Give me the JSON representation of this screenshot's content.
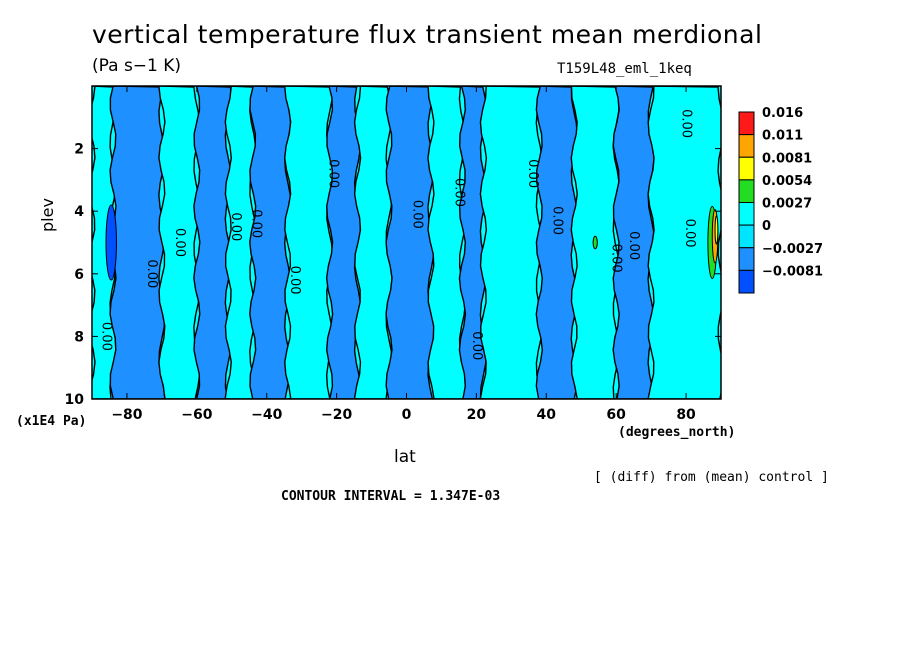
{
  "title": "vertical temperature flux transient mean merdional",
  "units": "(Pa s−1 K)",
  "experiment": "T159L48_eml_1keq",
  "y_axis_label": "plev",
  "y_axis_unit": "(x1E4 Pa)",
  "x_axis_unit": "(degrees_north)",
  "x_axis_label": "lat",
  "comparison_note": "[ (diff) from (mean) control ]",
  "contour_interval": "CONTOUR INTERVAL = 1.347E-03",
  "chart_data": {
    "type": "heatmap",
    "title": "vertical temperature flux transient mean merdional",
    "xlabel": "lat",
    "ylabel": "plev",
    "xlim": [
      -90,
      90
    ],
    "ylim": [
      10,
      0
    ],
    "x_ticks": [
      -80,
      -60,
      -40,
      -20,
      0,
      20,
      40,
      60,
      80
    ],
    "x_tick_labels": [
      "−80",
      "−60",
      "−40",
      "−20",
      "0",
      "20",
      "40",
      "60",
      "80"
    ],
    "y_ticks": [
      2,
      4,
      6,
      8,
      10
    ],
    "y_tick_labels": [
      "2",
      "4",
      "6",
      "8",
      "10"
    ],
    "legend_placement": "right",
    "colorbar": {
      "labels": [
        "0.016",
        "0.011",
        "0.0081",
        "0.0054",
        "0.0027",
        "0",
        "−0.0027",
        "−0.0081"
      ],
      "colors": [
        "#ff1a1a",
        "#ffa500",
        "#ffff00",
        "#22dd22",
        "#00ffff",
        "#00e5ff",
        "#1e90ff",
        "#0050ff"
      ]
    },
    "band_colors": {
      "negative": "#1e90ff",
      "zero": "#00ffff",
      "positive": "#22dd22",
      "strong_positive": "#ffa500",
      "very_strong_positive": "#ffff00",
      "strong_negative": "#0050ff"
    },
    "bands": [
      {
        "lat": [
          -90,
          -84
        ],
        "level": "zero"
      },
      {
        "lat": [
          -84,
          -70
        ],
        "level": "negative"
      },
      {
        "lat": [
          -70,
          -60
        ],
        "level": "zero"
      },
      {
        "lat": [
          -60,
          -51
        ],
        "level": "negative"
      },
      {
        "lat": [
          -51,
          -44
        ],
        "level": "zero"
      },
      {
        "lat": [
          -44,
          -34
        ],
        "level": "negative"
      },
      {
        "lat": [
          -34,
          -22
        ],
        "level": "zero"
      },
      {
        "lat": [
          -22,
          -14
        ],
        "level": "negative"
      },
      {
        "lat": [
          -14,
          -5
        ],
        "level": "zero"
      },
      {
        "lat": [
          -5,
          7
        ],
        "level": "negative"
      },
      {
        "lat": [
          7,
          16
        ],
        "level": "zero"
      },
      {
        "lat": [
          16,
          22
        ],
        "level": "negative"
      },
      {
        "lat": [
          22,
          38
        ],
        "level": "zero"
      },
      {
        "lat": [
          38,
          48
        ],
        "level": "negative"
      },
      {
        "lat": [
          48,
          60
        ],
        "level": "zero"
      },
      {
        "lat": [
          60,
          70
        ],
        "level": "negative"
      },
      {
        "lat": [
          70,
          90
        ],
        "level": "zero"
      }
    ],
    "features": [
      {
        "lat": -84.5,
        "plev": 5.0,
        "dlat": 3,
        "dplev": 2.4,
        "level": "strong_negative"
      },
      {
        "lat": 54,
        "plev": 5.0,
        "dlat": 1.2,
        "dplev": 0.4,
        "level": "positive"
      },
      {
        "lat": 87.5,
        "plev": 5.0,
        "dlat": 2.5,
        "dplev": 2.3,
        "level": "positive"
      },
      {
        "lat": 88.3,
        "plev": 4.8,
        "dlat": 1.6,
        "dplev": 1.7,
        "level": "strong_positive"
      },
      {
        "lat": 88.7,
        "plev": 4.6,
        "dlat": 0.8,
        "dplev": 0.9,
        "level": "very_strong_positive"
      }
    ],
    "contour_labels": [
      {
        "lat": -86,
        "plev": 8.0,
        "text": "0.00"
      },
      {
        "lat": -73,
        "plev": 6.0,
        "text": "0.00"
      },
      {
        "lat": -65,
        "plev": 5.0,
        "text": "0.00"
      },
      {
        "lat": -49,
        "plev": 4.5,
        "text": "0.00"
      },
      {
        "lat": -43,
        "plev": 4.4,
        "text": "0.00"
      },
      {
        "lat": -32,
        "plev": 6.2,
        "text": "0.00"
      },
      {
        "lat": -21,
        "plev": 2.8,
        "text": "0.00"
      },
      {
        "lat": 3,
        "plev": 4.1,
        "text": "0.00"
      },
      {
        "lat": 15,
        "plev": 3.4,
        "text": "0.00"
      },
      {
        "lat": 20,
        "plev": 8.3,
        "text": "0.00"
      },
      {
        "lat": 36,
        "plev": 2.8,
        "text": "0.00"
      },
      {
        "lat": 43,
        "plev": 4.3,
        "text": "0.00"
      },
      {
        "lat": 60,
        "plev": 5.5,
        "text": "0.00"
      },
      {
        "lat": 65,
        "plev": 5.1,
        "text": "0.00"
      },
      {
        "lat": 80,
        "plev": 1.2,
        "text": "0.00"
      },
      {
        "lat": 81,
        "plev": 4.7,
        "text": "0.00"
      }
    ]
  }
}
